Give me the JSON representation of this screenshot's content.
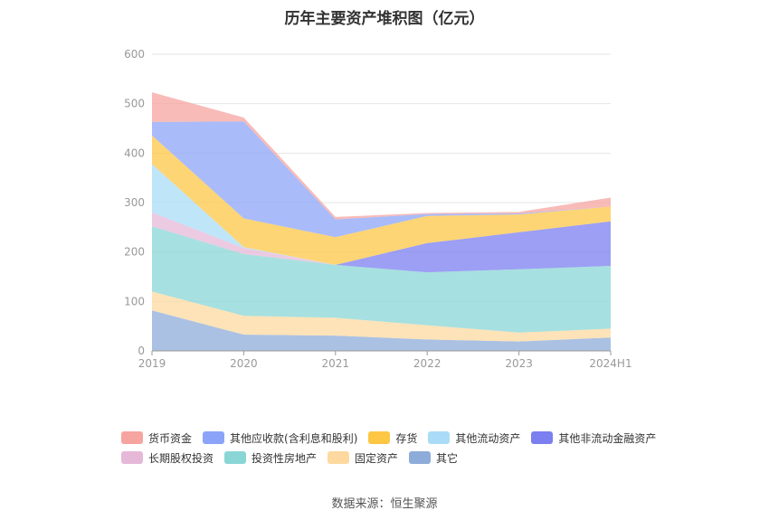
{
  "title": "历年主要资产堆积图（亿元）",
  "source": "数据来源：恒生聚源",
  "chart_data": {
    "type": "area",
    "stacked": true,
    "x": [
      "2019",
      "2020",
      "2021",
      "2022",
      "2023",
      "2024H1"
    ],
    "ylim": [
      0,
      600
    ],
    "yticks": [
      0,
      100,
      200,
      300,
      400,
      500,
      600
    ],
    "grid": true,
    "legend_position": "bottom",
    "series": [
      {
        "name": "其它",
        "color": "#8eacd9",
        "values": [
          82,
          33,
          31,
          23,
          19,
          27
        ]
      },
      {
        "name": "固定资产",
        "color": "#fdd9a0",
        "values": [
          38,
          38,
          36,
          29,
          18,
          18
        ]
      },
      {
        "name": "投资性房地产",
        "color": "#8ad6d6",
        "values": [
          132,
          125,
          107,
          107,
          128,
          127
        ]
      },
      {
        "name": "长期股权投资",
        "color": "#e6b8d8",
        "values": [
          28,
          12,
          0,
          0,
          0,
          0
        ]
      },
      {
        "name": "其他非流动金融资产",
        "color": "#7b7ff0",
        "values": [
          0,
          0,
          0,
          59,
          75,
          90
        ]
      },
      {
        "name": "其他流动资产",
        "color": "#aadcf7",
        "values": [
          98,
          2,
          0,
          0,
          0,
          0
        ]
      },
      {
        "name": "存货",
        "color": "#fdc745",
        "values": [
          58,
          58,
          56,
          55,
          36,
          30
        ]
      },
      {
        "name": "其他应收款(含利息和股利)",
        "color": "#8ca4f7",
        "values": [
          27,
          196,
          36,
          4,
          2,
          0
        ]
      },
      {
        "name": "货币资金",
        "color": "#f6a4a0",
        "values": [
          60,
          8,
          5,
          2,
          3,
          18
        ]
      }
    ]
  },
  "legend_rows": [
    [
      "货币资金",
      "其他应收款(含利息和股利)",
      "存货",
      "其他流动资产",
      "其他非流动金融资产"
    ],
    [
      "长期股权投资",
      "投资性房地产",
      "固定资产",
      "其它"
    ]
  ]
}
